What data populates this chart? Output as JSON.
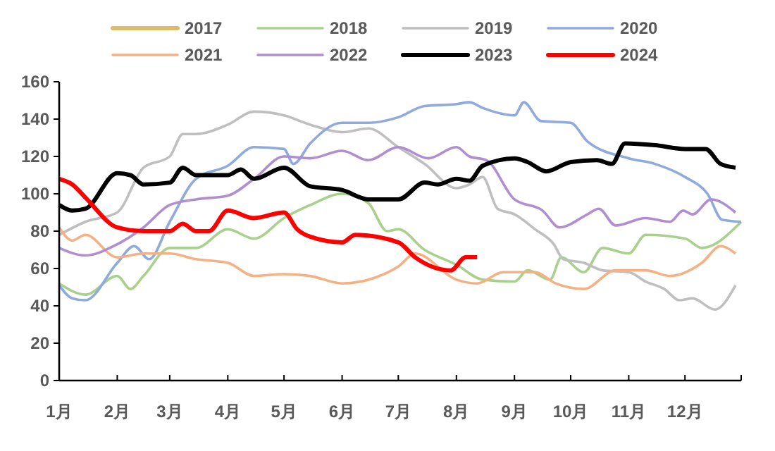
{
  "chart_data": {
    "type": "line",
    "legend": "top",
    "xlim": [
      "--01-01",
      "--12-31"
    ],
    "ylim": [
      0,
      160
    ],
    "yticks": [
      0,
      20,
      40,
      60,
      80,
      100,
      120,
      140,
      160
    ],
    "xticks": [
      {
        "value": "--01-01",
        "label": "1月"
      },
      {
        "value": "--02-01",
        "label": "2月"
      },
      {
        "value": "--03-01",
        "label": "3月"
      },
      {
        "value": "--04-01",
        "label": "4月"
      },
      {
        "value": "--05-01",
        "label": "5月"
      },
      {
        "value": "--06-01",
        "label": "6月"
      },
      {
        "value": "--07-01",
        "label": "7月"
      },
      {
        "value": "--08-01",
        "label": "8月"
      },
      {
        "value": "--09-01",
        "label": "9月"
      },
      {
        "value": "--10-01",
        "label": "10月"
      },
      {
        "value": "--11-01",
        "label": "11月"
      },
      {
        "value": "--12-01",
        "label": "12月"
      },
      {
        "value": "--12-31",
        "label": null
      }
    ],
    "series": [
      {
        "name": "2017",
        "color": "#d9bd6a"
      },
      {
        "name": "2018",
        "color": "#a9d18e",
        "x": [
          "--01-01",
          "--01-15",
          "--02-01",
          "--02-08",
          "--02-15",
          "--03-01",
          "--03-15",
          "--04-01",
          "--04-15",
          "--05-01",
          "--05-15",
          "--06-01",
          "--06-15",
          "--06-25",
          "--07-01",
          "--07-15",
          "--08-01",
          "--08-15",
          "--09-01",
          "--09-08",
          "--09-20",
          "--09-26",
          "--10-08",
          "--10-18",
          "--11-01",
          "--11-10",
          "--12-01",
          "--12-10",
          "--12-31"
        ],
        "values": [
          52,
          46,
          56,
          49,
          56,
          71,
          71,
          81,
          76,
          87,
          94,
          100,
          95,
          80,
          81,
          70,
          62,
          54,
          53,
          59,
          54,
          66,
          58,
          71,
          68,
          78,
          76,
          71,
          85
        ]
      },
      {
        "name": "2019",
        "color": "#bfbfbf",
        "x": [
          "--01-01",
          "--01-15",
          "--02-01",
          "--02-15",
          "--03-01",
          "--03-08",
          "--03-15",
          "--04-01",
          "--04-15",
          "--05-01",
          "--05-15",
          "--06-01",
          "--06-15",
          "--07-01",
          "--07-15",
          "--08-01",
          "--08-08",
          "--08-15",
          "--08-23",
          "--09-01",
          "--09-12",
          "--09-22",
          "--09-27",
          "--10-08",
          "--10-18",
          "--11-01",
          "--11-10",
          "--11-20",
          "--11-28",
          "--12-05",
          "--12-17",
          "--12-28"
        ],
        "values": [
          78,
          85,
          90,
          114,
          120,
          132,
          132,
          137,
          144,
          142,
          137,
          133,
          135,
          125,
          116,
          103,
          105,
          109,
          92,
          89,
          81,
          73,
          65,
          63,
          59,
          58,
          53,
          49,
          43,
          44,
          38,
          51
        ]
      },
      {
        "name": "2020",
        "color": "#8faadc",
        "x": [
          "--01-01",
          "--01-08",
          "--01-15",
          "--02-01",
          "--02-10",
          "--02-18",
          "--03-01",
          "--03-15",
          "--04-01",
          "--04-15",
          "--05-01",
          "--05-06",
          "--05-15",
          "--06-01",
          "--06-15",
          "--07-01",
          "--07-15",
          "--08-01",
          "--08-08",
          "--08-15",
          "--09-01",
          "--09-06",
          "--09-15",
          "--10-01",
          "--10-10",
          "--11-01",
          "--11-15",
          "--12-01",
          "--12-13",
          "--12-21",
          "--12-31"
        ],
        "values": [
          51,
          44,
          43,
          63,
          72,
          65,
          85,
          108,
          115,
          125,
          124,
          116,
          127,
          138,
          138,
          141,
          147,
          148,
          149,
          146,
          142,
          149,
          139,
          138,
          128,
          119,
          116,
          109,
          100,
          86,
          85
        ]
      },
      {
        "name": "2021",
        "color": "#f4b183",
        "x": [
          "--01-01",
          "--01-08",
          "--01-15",
          "--02-01",
          "--02-15",
          "--03-01",
          "--03-15",
          "--04-01",
          "--04-15",
          "--05-01",
          "--05-15",
          "--06-01",
          "--06-15",
          "--07-01",
          "--07-10",
          "--08-01",
          "--08-12",
          "--08-26",
          "--09-12",
          "--09-23",
          "--10-08",
          "--10-25",
          "--11-10",
          "--11-23",
          "--12-10",
          "--12-20",
          "--12-28"
        ],
        "values": [
          82,
          75,
          78,
          66,
          68,
          68,
          65,
          63,
          56,
          57,
          56,
          52,
          54,
          61,
          68,
          54,
          52,
          58,
          58,
          52,
          49,
          59,
          59,
          56,
          63,
          72,
          68
        ]
      },
      {
        "name": "2022",
        "color": "#b08fd0",
        "x": [
          "--01-01",
          "--01-15",
          "--02-01",
          "--02-15",
          "--03-01",
          "--03-15",
          "--04-01",
          "--04-15",
          "--05-01",
          "--05-15",
          "--06-01",
          "--06-15",
          "--07-01",
          "--07-17",
          "--08-01",
          "--08-08",
          "--08-17",
          "--09-01",
          "--09-16",
          "--09-25",
          "--10-10",
          "--10-16",
          "--10-25",
          "--11-10",
          "--11-23",
          "--11-30",
          "--12-05",
          "--12-15",
          "--12-28"
        ],
        "values": [
          71,
          67,
          73,
          82,
          94,
          97,
          99,
          108,
          120,
          119,
          123,
          118,
          125,
          119,
          125,
          120,
          118,
          97,
          91,
          82,
          89,
          92,
          83,
          87,
          85,
          91,
          89,
          97,
          90
        ]
      },
      {
        "name": "2023",
        "color": "#000000",
        "x": [
          "--01-01",
          "--01-08",
          "--01-15",
          "--02-01",
          "--02-08",
          "--02-15",
          "--03-01",
          "--03-08",
          "--03-15",
          "--04-01",
          "--04-08",
          "--04-15",
          "--05-01",
          "--05-15",
          "--06-01",
          "--06-15",
          "--07-01",
          "--07-15",
          "--07-22",
          "--08-01",
          "--08-08",
          "--08-15",
          "--09-01",
          "--09-08",
          "--09-18",
          "--10-01",
          "--10-15",
          "--10-23",
          "--10-30",
          "--11-15",
          "--12-01",
          "--12-12",
          "--12-20",
          "--12-28"
        ],
        "values": [
          94,
          91,
          92,
          111,
          110,
          105,
          106,
          114,
          110,
          110,
          113,
          108,
          114,
          104,
          102,
          97,
          97,
          106,
          105,
          108,
          107,
          115,
          119,
          117,
          112,
          117,
          118,
          116,
          127,
          126,
          124,
          124,
          116,
          114
        ]
      },
      {
        "name": "2024",
        "color": "#ff0000",
        "x": [
          "--01-01",
          "--01-08",
          "--01-15",
          "--02-01",
          "--02-15",
          "--03-01",
          "--03-08",
          "--03-15",
          "--03-22",
          "--04-01",
          "--04-15",
          "--05-01",
          "--05-08",
          "--05-15",
          "--06-01",
          "--06-08",
          "--07-01",
          "--07-10",
          "--07-29",
          "--08-06",
          "--08-12"
        ],
        "values": [
          108,
          105,
          98,
          82,
          80,
          80,
          84,
          80,
          80,
          91,
          87,
          90,
          81,
          77,
          74,
          78,
          74,
          66,
          59,
          66,
          66
        ]
      }
    ]
  }
}
